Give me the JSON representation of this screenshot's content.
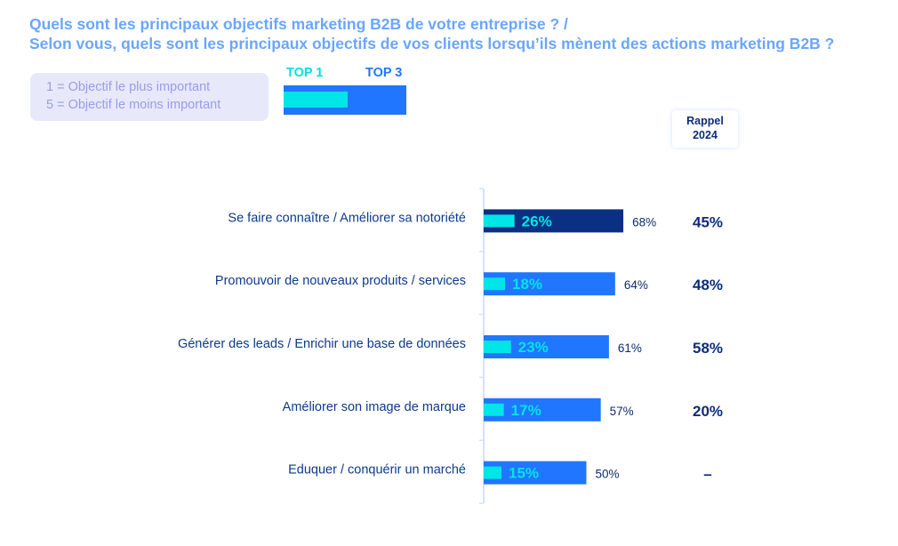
{
  "title_line1": "Quels sont les principaux objectifs marketing B2B de votre entreprise ? /",
  "title_line2": "Selon vous, quels sont les principaux objectifs de vos clients lorsqu’ils mènent des actions marketing B2B ?",
  "legend": {
    "scale_note_1": "1 = Objectif le plus important",
    "scale_note_2": "5 = Objectif le moins important",
    "top1_label": "TOP 1",
    "top3_label": "TOP 3"
  },
  "rappel_header_1": "Rappel",
  "rappel_header_2": "2024",
  "colors": {
    "top1": "#00e5e5",
    "top3": "#2176ff",
    "top3_highlight": "#0b2f82",
    "title": "#6aa6ff",
    "axis": "#d4e2fb"
  },
  "chart_data": {
    "type": "bar",
    "orientation": "horizontal",
    "title": "Quels sont les principaux objectifs marketing B2B de votre entreprise ? / Selon vous, quels sont les principaux objectifs de vos clients lorsqu’ils mènent des actions marketing B2B ?",
    "categories": [
      "Se faire connaître / Améliorer sa notoriété",
      "Promouvoir de nouveaux produits / services",
      "Générer des leads / Enrichir une base de données",
      "Améliorer son image de marque",
      "Eduquer / conquérir un marché"
    ],
    "series": [
      {
        "name": "TOP 3",
        "values": [
          68,
          64,
          61,
          57,
          50
        ]
      },
      {
        "name": "TOP 1",
        "values": [
          26,
          18,
          23,
          17,
          15
        ]
      }
    ],
    "rappel_2024": [
      "45%",
      "48%",
      "58%",
      "20%",
      "–"
    ],
    "highlight_index": 0,
    "unit": "%",
    "xlim": [
      0,
      100
    ],
    "grid": false,
    "legend_position": "top-left"
  }
}
